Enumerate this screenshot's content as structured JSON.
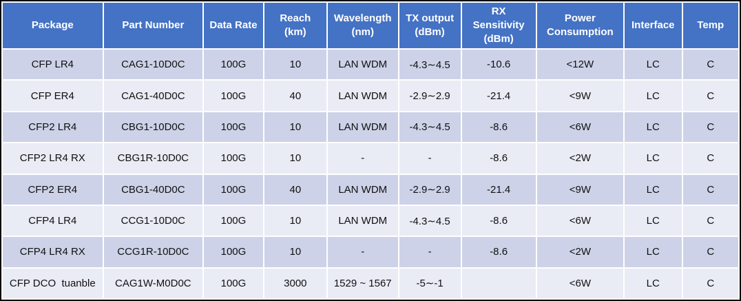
{
  "colors": {
    "header_bg": "#4472c4",
    "header_text": "#ffffff",
    "row_stripe_dark": "#cdd2e8",
    "row_stripe_light": "#e9ebf5",
    "gridline": "#ffffff",
    "outer_border": "#000000",
    "cell_text": "#111111"
  },
  "table": {
    "columns": [
      "Package",
      "Part Number",
      "Data Rate",
      "Reach (km)",
      "Wavelength (nm)",
      "TX output (dBm)",
      "RX Sensitivity (dBm)",
      "Power Consumption",
      "Interface",
      "Temp"
    ],
    "rows": [
      [
        "CFP LR4",
        "CAG1-10D0C",
        "100G",
        "10",
        "LAN WDM",
        "-4.3∼4.5",
        "-10.6",
        "<12W",
        "LC",
        "C"
      ],
      [
        "CFP ER4",
        "CAG1-40D0C",
        "100G",
        "40",
        "LAN WDM",
        "-2.9∼2.9",
        "-21.4",
        "<9W",
        "LC",
        "C"
      ],
      [
        "CFP2 LR4",
        "CBG1-10D0C",
        "100G",
        "10",
        "LAN WDM",
        "-4.3∼4.5",
        "-8.6",
        "<6W",
        "LC",
        "C"
      ],
      [
        "CFP2 LR4 RX",
        "CBG1R-10D0C",
        "100G",
        "10",
        "-",
        "-",
        "-8.6",
        "<2W",
        "LC",
        "C"
      ],
      [
        "CFP2 ER4",
        "CBG1-40D0C",
        "100G",
        "40",
        "LAN WDM",
        "-2.9∼2.9",
        "-21.4",
        "<9W",
        "LC",
        "C"
      ],
      [
        "CFP4 LR4",
        "CCG1-10D0C",
        "100G",
        "10",
        "LAN WDM",
        "-4.3∼4.5",
        "-8.6",
        "<6W",
        "LC",
        "C"
      ],
      [
        "CFP4 LR4 RX",
        "CCG1R-10D0C",
        "100G",
        "10",
        "-",
        "-",
        "-8.6",
        "<2W",
        "LC",
        "C"
      ],
      [
        "CFP DCO  tuanble",
        "CAG1W-M0D0C",
        "100G",
        "3000",
        "1529 ~ 1567",
        "-5∼-1",
        "",
        "<6W",
        "LC",
        "C"
      ]
    ]
  }
}
